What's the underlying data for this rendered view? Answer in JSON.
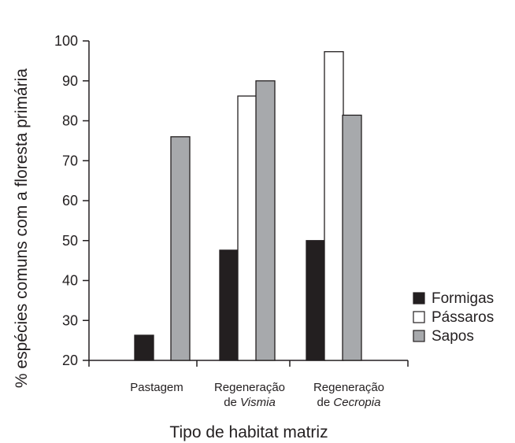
{
  "chart_data": {
    "type": "bar",
    "xlabel": "Tipo de habitat matriz",
    "ylabel": "% espécies comuns com a floresta primária",
    "ylim": [
      20,
      100
    ],
    "yticks": [
      20,
      30,
      40,
      50,
      60,
      70,
      80,
      90,
      100
    ],
    "categories": [
      {
        "line1": "Pastagem",
        "line2_prefix": "",
        "line2_italic": ""
      },
      {
        "line1": "Regeneração",
        "line2_prefix": "de ",
        "line2_italic": "Vismia"
      },
      {
        "line1": "Regeneração",
        "line2_prefix": "de ",
        "line2_italic": "Cecropia"
      }
    ],
    "series": [
      {
        "name": "Formigas",
        "color": "#231f20",
        "values": [
          26.3,
          47.6,
          50.0
        ]
      },
      {
        "name": "Pássaros",
        "color": "#ffffff",
        "values": [
          null,
          86.2,
          97.3
        ]
      },
      {
        "name": "Sapos",
        "color": "#a7a9ac",
        "values": [
          76.0,
          90.0,
          81.4
        ]
      }
    ],
    "legend_position": "right",
    "grid": false
  }
}
